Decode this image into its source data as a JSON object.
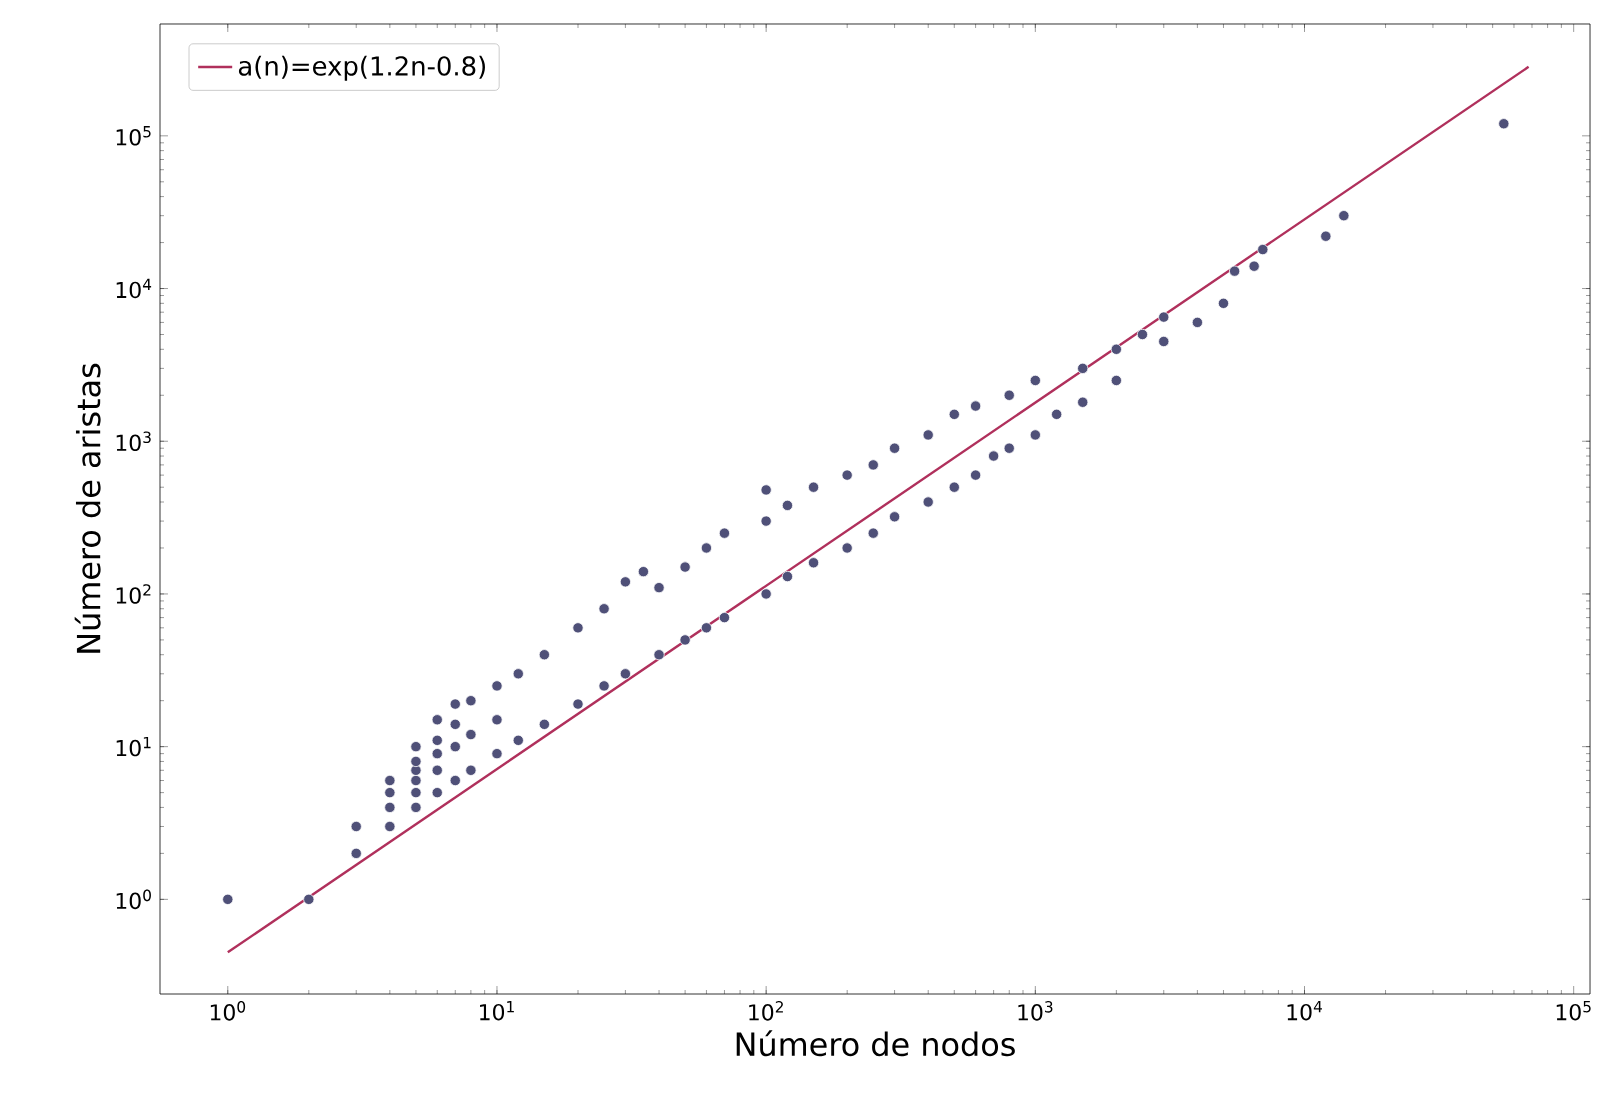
{
  "chart_data": {
    "type": "scatter",
    "xlabel": "Número de nodos",
    "ylabel": "Número de aristas",
    "log": "xy",
    "grid": false,
    "legend": "top left",
    "marker": "circle",
    "xlim": [
      0.56,
      115000
    ],
    "ylim": [
      0.24,
      540000
    ],
    "xticks": [
      {
        "value": 1,
        "label": "10$^{0}$"
      },
      {
        "value": 10,
        "label": "10$^{1}$"
      },
      {
        "value": 100,
        "label": "10$^{2}$"
      },
      {
        "value": 1000,
        "label": "10$^{3}$"
      },
      {
        "value": 10000,
        "label": "10$^{4}$"
      },
      {
        "value": 100000,
        "label": "10$^{5}$"
      }
    ],
    "yticks": [
      {
        "value": 1,
        "label": "10$^{0}$"
      },
      {
        "value": 10,
        "label": "10$^{1}$"
      },
      {
        "value": 100,
        "label": "10$^{2}$"
      },
      {
        "value": 1000,
        "label": "10$^{3}$"
      },
      {
        "value": 10000,
        "label": "10$^{4}$"
      },
      {
        "value": 100000,
        "label": "10$^{5}$"
      }
    ],
    "series": [
      {
        "color": "#4f5078",
        "x": [
          1,
          2,
          3,
          3,
          4,
          4,
          4,
          4,
          5,
          5,
          5,
          5,
          5,
          5,
          6,
          6,
          6,
          6,
          6,
          7,
          7,
          7,
          7,
          8,
          8,
          8,
          10,
          10,
          10,
          12,
          12,
          15,
          15,
          20,
          20,
          25,
          25,
          30,
          30,
          35,
          40,
          40,
          50,
          50,
          60,
          60,
          70,
          70,
          100,
          100,
          100,
          120,
          120,
          150,
          150,
          200,
          200,
          250,
          250,
          300,
          300,
          400,
          400,
          500,
          500,
          600,
          600,
          700,
          800,
          800,
          1000,
          1000,
          1200,
          1500,
          1500,
          2000,
          2000,
          2500,
          3000,
          3000,
          4000,
          5000,
          5500,
          6500,
          7000,
          12000,
          14000,
          55000
        ],
        "values": [
          1,
          1,
          2,
          3,
          3,
          4,
          5,
          6,
          4,
          5,
          6,
          7,
          8,
          10,
          5,
          7,
          9,
          11,
          15,
          6,
          10,
          14,
          19,
          7,
          12,
          20,
          9,
          15,
          25,
          11,
          30,
          14,
          40,
          19,
          60,
          25,
          80,
          30,
          120,
          140,
          40,
          110,
          50,
          150,
          60,
          200,
          70,
          250,
          100,
          300,
          480,
          130,
          380,
          160,
          500,
          200,
          600,
          250,
          700,
          320,
          900,
          400,
          1100,
          500,
          1500,
          600,
          1700,
          800,
          900,
          2000,
          1100,
          2500,
          1500,
          1800,
          3000,
          2500,
          4000,
          5000,
          4500,
          6500,
          6000,
          8000,
          13000,
          14000,
          18000,
          22000,
          30000,
          120000
        ]
      },
      {
        "type": "line",
        "name": "a(n)=exp(1.2n-0.8)",
        "color": "#b0305c",
        "marker": "none",
        "x": [
          1,
          68000
        ],
        "values": [
          0.45,
          283000
        ]
      }
    ]
  }
}
